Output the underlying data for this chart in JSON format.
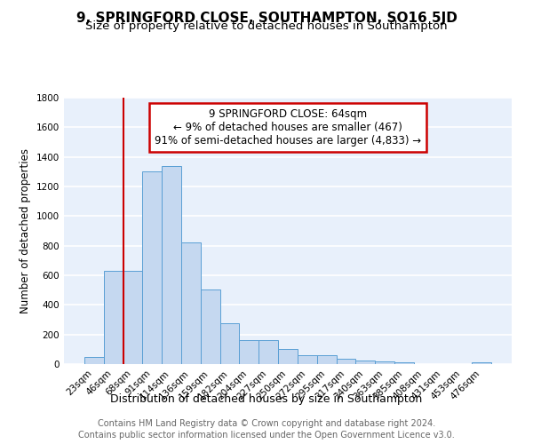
{
  "title": "9, SPRINGFORD CLOSE, SOUTHAMPTON, SO16 5JD",
  "subtitle": "Size of property relative to detached houses in Southampton",
  "xlabel": "Distribution of detached houses by size in Southampton",
  "ylabel": "Number of detached properties",
  "categories": [
    "23sqm",
    "46sqm",
    "68sqm",
    "91sqm",
    "114sqm",
    "136sqm",
    "159sqm",
    "182sqm",
    "204sqm",
    "227sqm",
    "250sqm",
    "272sqm",
    "295sqm",
    "317sqm",
    "340sqm",
    "363sqm",
    "385sqm",
    "408sqm",
    "431sqm",
    "453sqm",
    "476sqm"
  ],
  "values": [
    50,
    630,
    630,
    1300,
    1340,
    820,
    505,
    275,
    165,
    165,
    105,
    60,
    60,
    35,
    25,
    20,
    15,
    0,
    0,
    0,
    15
  ],
  "bar_color": "#c5d8f0",
  "bar_edge_color": "#5a9fd4",
  "background_color": "#e8f0fb",
  "grid_color": "#ffffff",
  "vline_color": "#cc0000",
  "vline_x_idx": 2,
  "annotation_text": "9 SPRINGFORD CLOSE: 64sqm\n← 9% of detached houses are smaller (467)\n91% of semi-detached houses are larger (4,833) →",
  "annotation_box_color": "#cc0000",
  "ylim": [
    0,
    1800
  ],
  "yticks": [
    0,
    200,
    400,
    600,
    800,
    1000,
    1200,
    1400,
    1600,
    1800
  ],
  "footnote1": "Contains HM Land Registry data © Crown copyright and database right 2024.",
  "footnote2": "Contains public sector information licensed under the Open Government Licence v3.0.",
  "title_fontsize": 11,
  "subtitle_fontsize": 9.5,
  "xlabel_fontsize": 9,
  "ylabel_fontsize": 8.5,
  "tick_fontsize": 7.5,
  "annotation_fontsize": 8.5,
  "footnote_fontsize": 7
}
